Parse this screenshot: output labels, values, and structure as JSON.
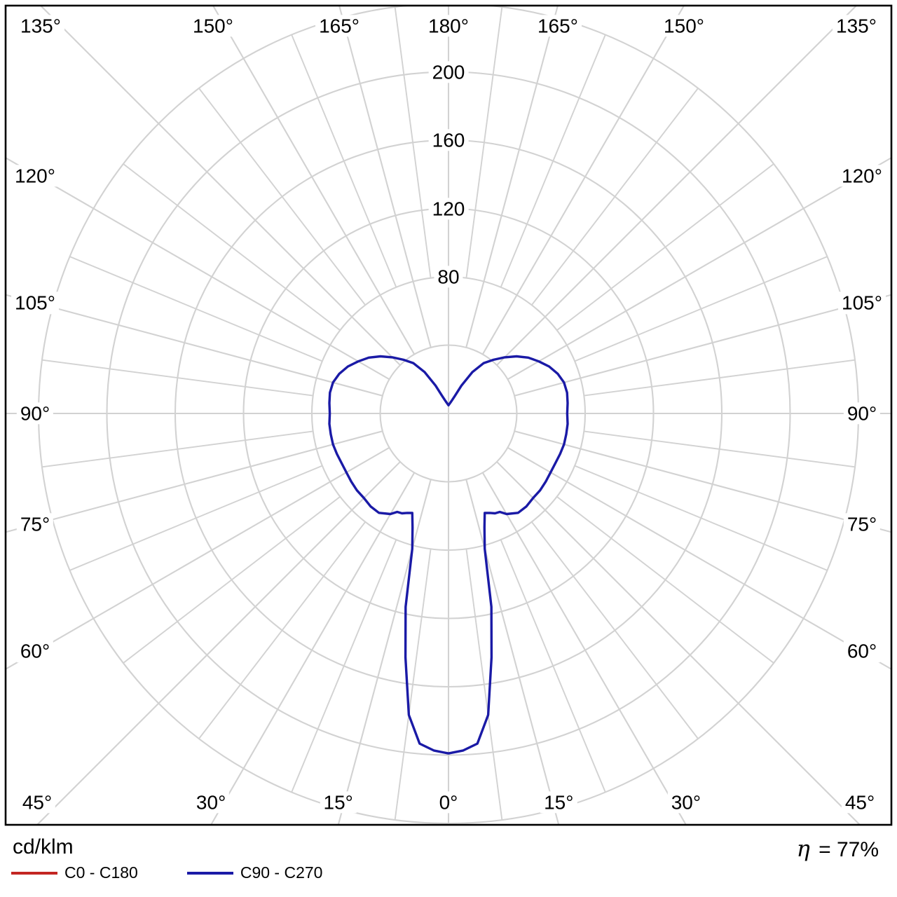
{
  "footer": {
    "units_label": "cd/klm",
    "efficiency_symbol": "η",
    "efficiency_value": "= 77%",
    "legend": [
      {
        "label": "C0 - C180",
        "color": "#c32622"
      },
      {
        "label": "C90 - C270",
        "color": "#1a1aa6"
      }
    ]
  },
  "chart_data": {
    "type": "polar",
    "subtype": "photometric_intensity_distribution",
    "units": "cd/klm",
    "efficiency_percent": 77,
    "grid": {
      "color": "#d2d2d2",
      "frame_color": "#000000",
      "circle_values": [
        40,
        80,
        120,
        160,
        200,
        240
      ],
      "radial_tick_labels": [
        "80",
        "120",
        "160",
        "200"
      ],
      "radial_tick_values": [
        80,
        120,
        160,
        200
      ],
      "major_spoke_step_deg": 15,
      "minor_spoke_step_deg": 7.5,
      "gamma_zero_direction": "down"
    },
    "angle_labels": [
      {
        "text": "0°",
        "phi": 0
      },
      {
        "text": "15°",
        "phi": 15
      },
      {
        "text": "30°",
        "phi": 30
      },
      {
        "text": "45°",
        "phi": 45
      },
      {
        "text": "60°",
        "phi": 60
      },
      {
        "text": "75°",
        "phi": 75
      },
      {
        "text": "90°",
        "phi": 90
      },
      {
        "text": "105°",
        "phi": 105
      },
      {
        "text": "120°",
        "phi": 120
      },
      {
        "text": "135°",
        "phi": 135
      },
      {
        "text": "150°",
        "phi": 150
      },
      {
        "text": "165°",
        "phi": 165
      },
      {
        "text": "180°",
        "phi": 180
      },
      {
        "text": "165°",
        "phi": 195
      },
      {
        "text": "150°",
        "phi": 210
      },
      {
        "text": "135°",
        "phi": 225
      },
      {
        "text": "120°",
        "phi": 240
      },
      {
        "text": "105°",
        "phi": 255
      },
      {
        "text": "90°",
        "phi": 270
      },
      {
        "text": "75°",
        "phi": 285
      },
      {
        "text": "60°",
        "phi": 300
      },
      {
        "text": "45°",
        "phi": 315
      },
      {
        "text": "30°",
        "phi": 330
      },
      {
        "text": "15°",
        "phi": 345
      }
    ],
    "series": [
      {
        "name": "C0 - C180",
        "color": "#c32622",
        "curve_visible": false
      },
      {
        "name": "C90 - C270",
        "color": "#1a1aa6",
        "curve_visible": true,
        "symmetric_about_vertical": true,
        "gamma_deg": [
          0,
          2.5,
          5,
          7.5,
          10,
          12.5,
          15,
          17.5,
          20,
          22.5,
          25,
          27.5,
          30,
          35,
          40,
          45,
          50,
          55,
          60,
          65,
          70,
          75,
          80,
          85,
          90,
          95,
          100,
          105,
          110,
          115,
          120,
          125,
          130,
          135,
          140,
          145,
          150,
          155,
          160,
          165,
          170,
          175,
          180
        ],
        "intensity_cd_per_klm": [
          199,
          197.5,
          194,
          178,
          145,
          116,
          82,
          70,
          62,
          63,
          64.5,
          65,
          68,
          71,
          71,
          70,
          70,
          69.5,
          69,
          69,
          69.5,
          70,
          70,
          70,
          69.5,
          70,
          70.5,
          70,
          68,
          65,
          61,
          57,
          52,
          46.5,
          41,
          36,
          28,
          18,
          11,
          8,
          6.5,
          5.5,
          4.8
        ]
      }
    ]
  }
}
